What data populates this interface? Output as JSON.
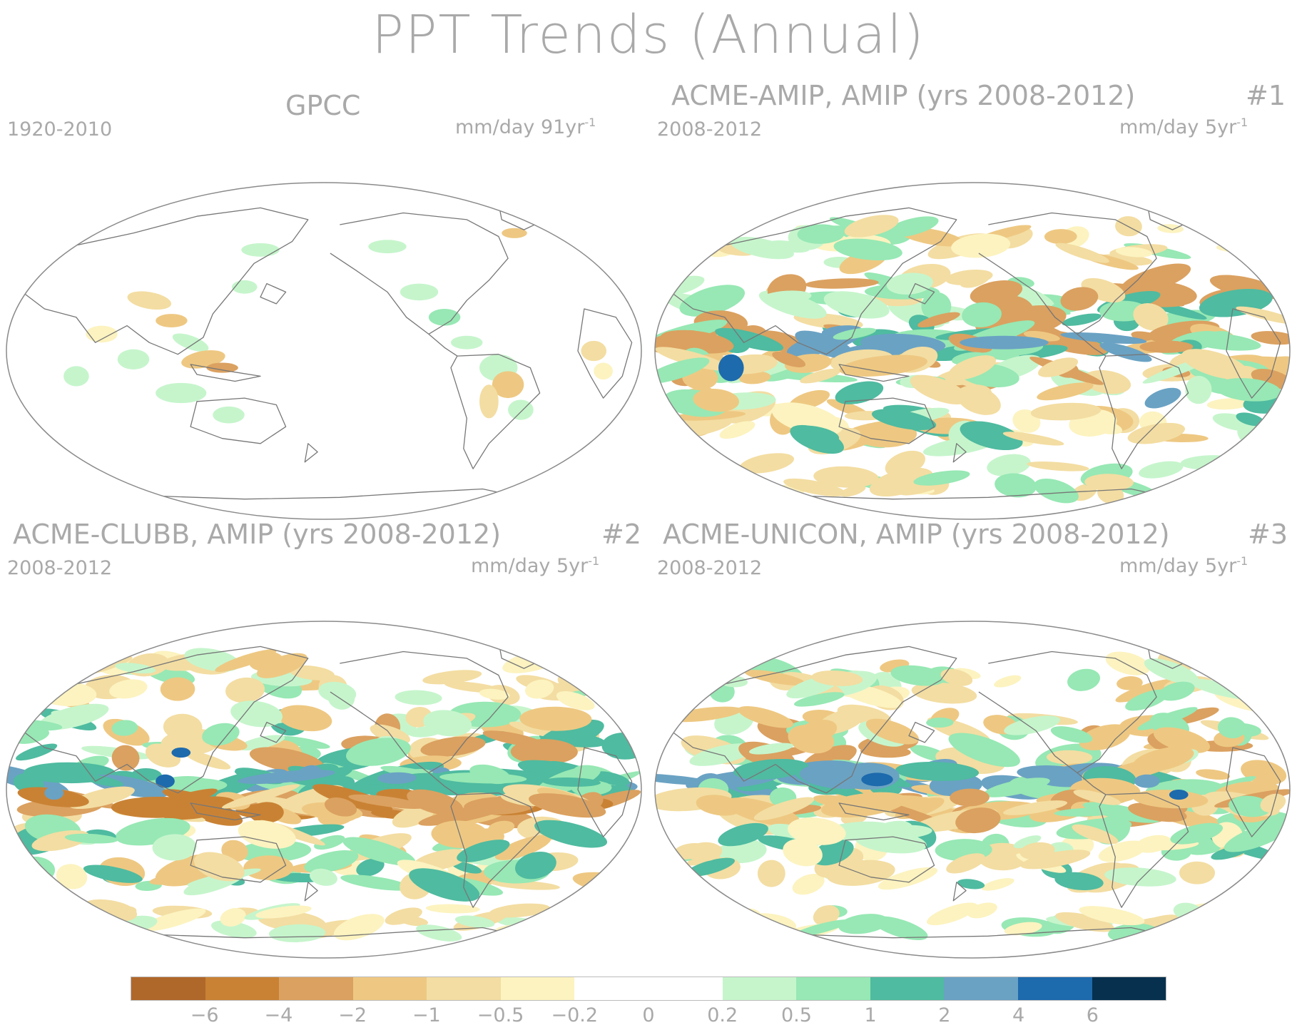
{
  "figure": {
    "title": "PPT Trends (Annual)"
  },
  "panels": [
    {
      "name": "GPCC",
      "title": "GPCC",
      "number": "",
      "period": "1920-2010",
      "units": "mm/day 91yr",
      "units_sup": "-1",
      "pattern": "gpcc"
    },
    {
      "name": "ACME-AMIP",
      "title": "ACME-AMIP, AMIP (yrs 2008-2012)",
      "number": "#1",
      "period": "2008-2012",
      "units": "mm/day 5yr",
      "units_sup": "-1",
      "pattern": "amip"
    },
    {
      "name": "ACME-CLUBB",
      "title": "ACME-CLUBB, AMIP (yrs 2008-2012)",
      "number": "#2",
      "period": "2008-2012",
      "units": "mm/day 5yr",
      "units_sup": "-1",
      "pattern": "clubb"
    },
    {
      "name": "ACME-UNICON",
      "title": "ACME-UNICON, AMIP (yrs 2008-2012)",
      "number": "#3",
      "period": "2008-2012",
      "units": "mm/day 5yr",
      "units_sup": "-1",
      "pattern": "unicon"
    }
  ],
  "colorbar": {
    "colors": [
      "#b0672a",
      "#c98234",
      "#dba160",
      "#eec882",
      "#f3dda2",
      "#fcf3c0",
      "#ffffff",
      "#ffffff",
      "#c6f5cc",
      "#97e8b4",
      "#4fbba0",
      "#6aa2c3",
      "#1d6aad",
      "#06304e"
    ],
    "labels": [
      "−6",
      "−4",
      "−2",
      "−1",
      "−0.5",
      "−0.2",
      "0",
      "0.2",
      "0.5",
      "1",
      "2",
      "4",
      "6"
    ]
  },
  "colors": {
    "text": "#a9a9a9",
    "coast": "#777777",
    "frame": "#8a8a8a"
  }
}
